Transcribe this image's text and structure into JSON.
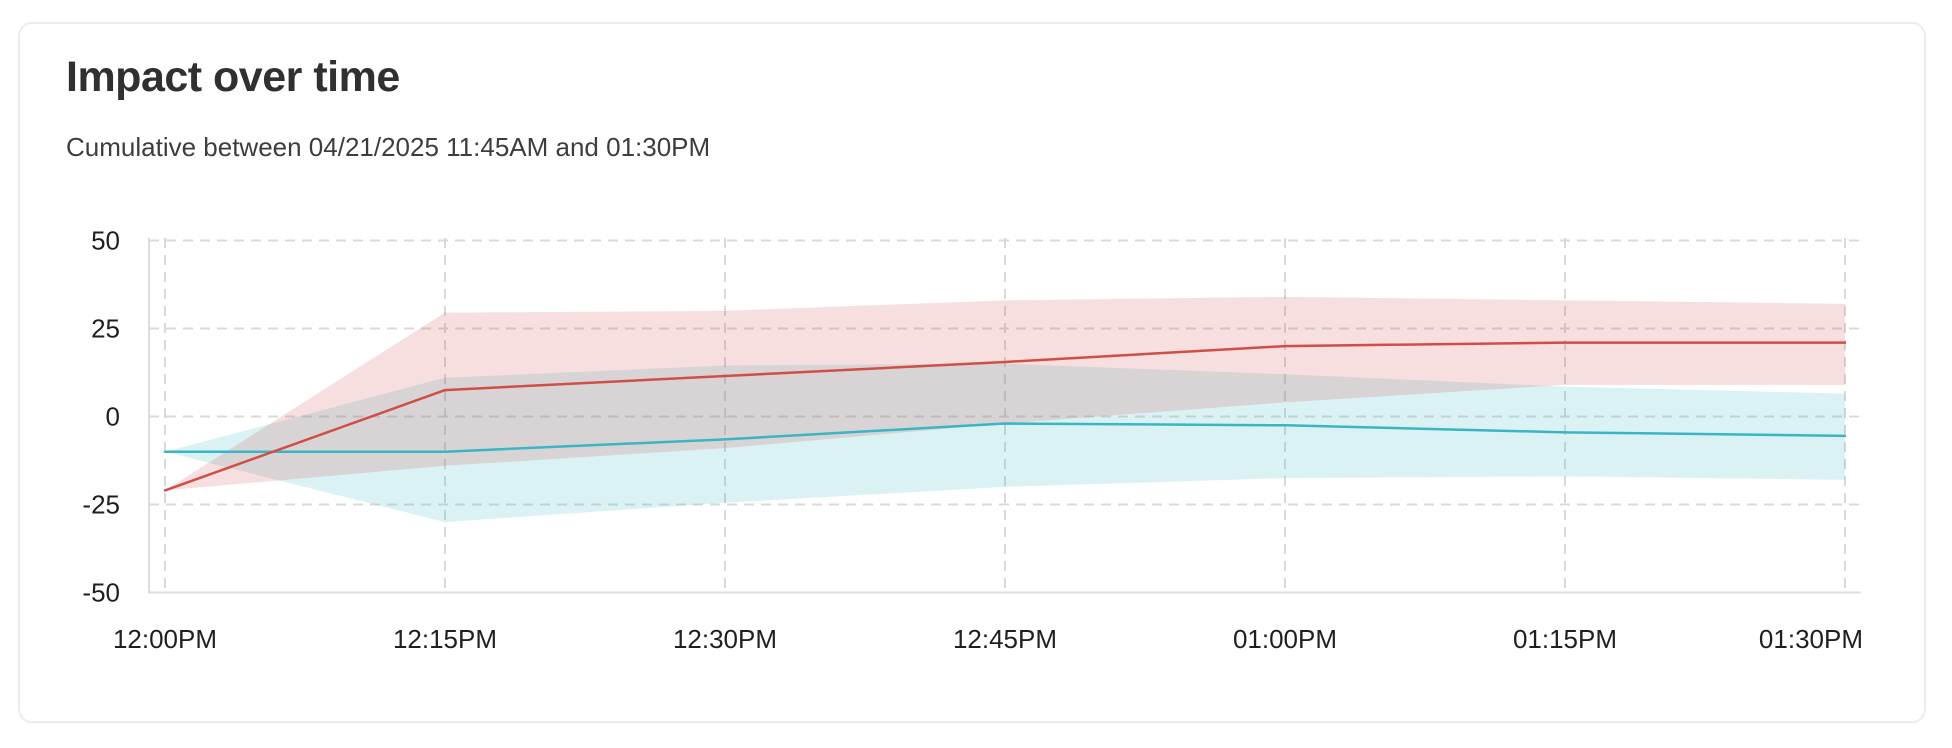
{
  "chart_data": {
    "type": "line",
    "title": "Impact over time",
    "subtitle": "Cumulative between 04/21/2025 11:45AM and 01:30PM",
    "categories": [
      "12:00PM",
      "12:15PM",
      "12:30PM",
      "12:45PM",
      "01:00PM",
      "01:15PM",
      "01:30PM"
    ],
    "ylim": [
      -50,
      50
    ],
    "yticks": [
      50,
      25,
      0,
      -25,
      -50
    ],
    "grid": "dashed",
    "legend": "none",
    "series": [
      {
        "name": "red",
        "color": "#cf4f47",
        "band_color": "rgba(207,79,71,0.18)",
        "values": [
          -21,
          7.5,
          11.5,
          15.5,
          20,
          21,
          21
        ],
        "band_upper": [
          -21,
          29.5,
          30,
          33,
          34,
          33,
          32
        ],
        "band_lower": [
          -21,
          -14,
          -9,
          -2,
          4,
          9,
          9
        ]
      },
      {
        "name": "teal",
        "color": "#3ab5c3",
        "band_color": "rgba(58,181,195,0.18)",
        "values": [
          -10,
          -10,
          -6.5,
          -2,
          -2.5,
          -4.5,
          -5.5
        ],
        "band_upper": [
          -10,
          11,
          14.5,
          15,
          12,
          8.5,
          6.5
        ],
        "band_lower": [
          -10,
          -30,
          -24.5,
          -20,
          -17.5,
          -17,
          -18
        ]
      }
    ]
  },
  "colors": {
    "page_bg": "#ffffff",
    "card_bg": "#ffffff",
    "card_border": "#ececec",
    "grid_dashed": "#d9d9d9",
    "axis_line": "#dddddd",
    "tick_text": "#1f1f1f",
    "title_text": "#303030",
    "subtitle_text": "#3d3d3d"
  }
}
